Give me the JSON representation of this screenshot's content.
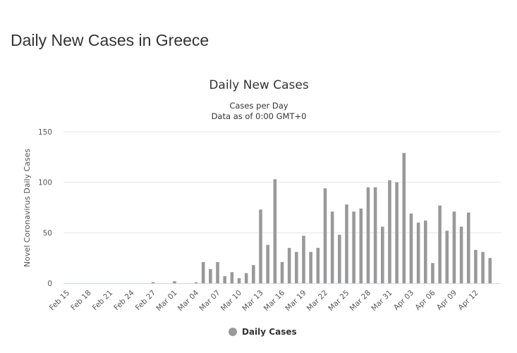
{
  "page": {
    "title": "Daily New Cases in Greece"
  },
  "colors": {
    "bar": "#999999",
    "grid": "#e6e6e6",
    "axis": "#ccd6eb"
  },
  "chart_data": {
    "type": "bar",
    "title": "Daily New Cases",
    "subtitle_lines": [
      "Cases per Day",
      "Data as of 0:00 GMT+0"
    ],
    "ylabel": "Novel Coronavirus Daily Cases",
    "xlabel": "",
    "ylim": [
      0,
      150
    ],
    "yticks": [
      0,
      50,
      100,
      150
    ],
    "grid": true,
    "legend": {
      "position": "bottom-center",
      "label": "Daily Cases"
    },
    "categories": [
      "Feb 15",
      "Feb 16",
      "Feb 17",
      "Feb 18",
      "Feb 19",
      "Feb 20",
      "Feb 21",
      "Feb 22",
      "Feb 23",
      "Feb 24",
      "Feb 25",
      "Feb 26",
      "Feb 27",
      "Feb 28",
      "Feb 29",
      "Mar 01",
      "Mar 02",
      "Mar 03",
      "Mar 04",
      "Mar 05",
      "Mar 06",
      "Mar 07",
      "Mar 08",
      "Mar 09",
      "Mar 10",
      "Mar 11",
      "Mar 12",
      "Mar 13",
      "Mar 14",
      "Mar 15",
      "Mar 16",
      "Mar 17",
      "Mar 18",
      "Mar 19",
      "Mar 20",
      "Mar 21",
      "Mar 22",
      "Mar 23",
      "Mar 24",
      "Mar 25",
      "Mar 26",
      "Mar 27",
      "Mar 28",
      "Mar 29",
      "Mar 30",
      "Mar 31",
      "Apr 01",
      "Apr 02",
      "Apr 03",
      "Apr 04",
      "Apr 05",
      "Apr 06",
      "Apr 07",
      "Apr 08",
      "Apr 09",
      "Apr 10",
      "Apr 11",
      "Apr 12",
      "Apr 13",
      "Apr 14",
      "Apr 15"
    ],
    "values": [
      0,
      0,
      0,
      0,
      0,
      0,
      0,
      0,
      0,
      0,
      0,
      0,
      1,
      0,
      0,
      2,
      0,
      0,
      1,
      21,
      14,
      21,
      7,
      11,
      5,
      10,
      18,
      73,
      38,
      103,
      21,
      35,
      31,
      47,
      31,
      35,
      94,
      71,
      48,
      78,
      71,
      74,
      95,
      95,
      56,
      102,
      100,
      129,
      69,
      60,
      62,
      20,
      77,
      52,
      71,
      56,
      70,
      33,
      31,
      25,
      0
    ],
    "xticks": [
      "Feb 15",
      "Feb 18",
      "Feb 21",
      "Feb 24",
      "Feb 27",
      "Mar 01",
      "Mar 04",
      "Mar 07",
      "Mar 10",
      "Mar 13",
      "Mar 16",
      "Mar 19",
      "Mar 22",
      "Mar 25",
      "Mar 28",
      "Mar 31",
      "Apr 03",
      "Apr 06",
      "Apr 09",
      "Apr 12"
    ]
  }
}
